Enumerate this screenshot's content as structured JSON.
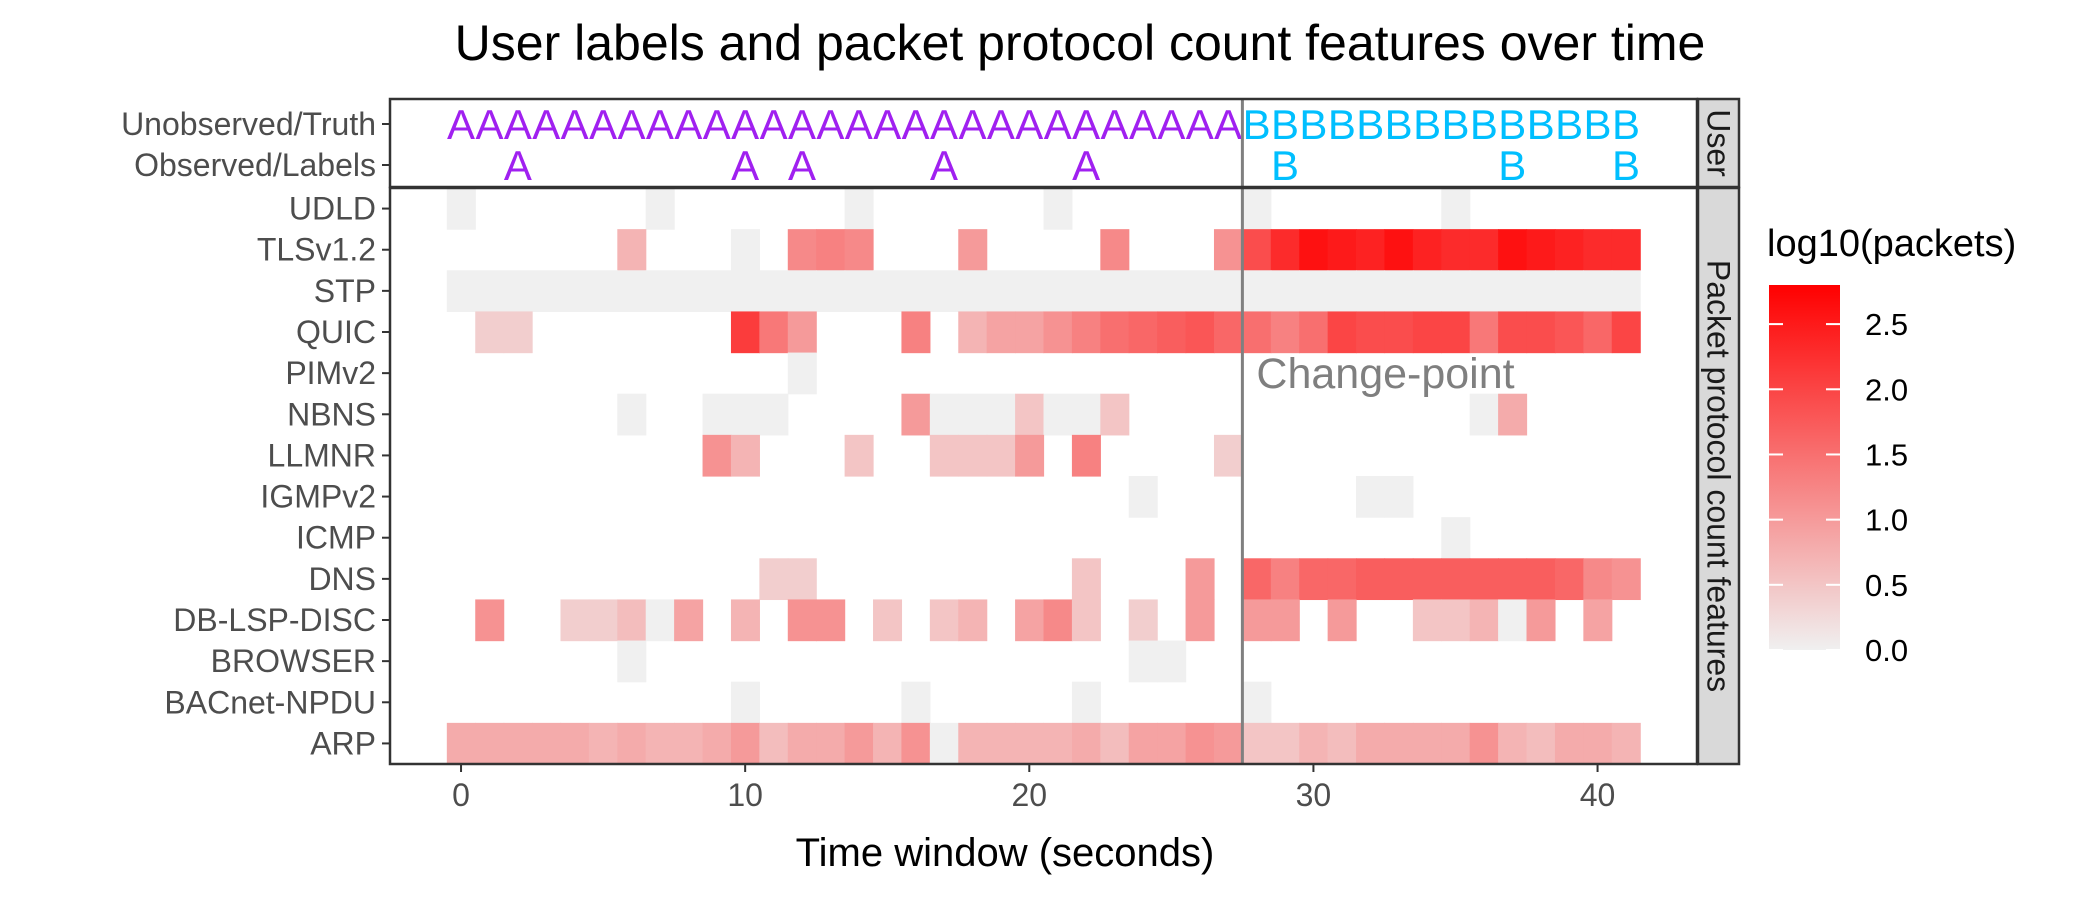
{
  "chart_data": {
    "type": "heatmap",
    "title": "User labels and packet protocol count features over time",
    "xlabel": "Time window (seconds)",
    "x_ticks": [
      0,
      10,
      20,
      30,
      40
    ],
    "xlim": [
      -2.5,
      43.5
    ],
    "facets": [
      "User",
      "Packet protocol count features"
    ],
    "user_rows": [
      "Unobserved/Truth",
      "Observed/Labels"
    ],
    "truth_labels": [
      "A",
      "A",
      "A",
      "A",
      "A",
      "A",
      "A",
      "A",
      "A",
      "A",
      "A",
      "A",
      "A",
      "A",
      "A",
      "A",
      "A",
      "A",
      "A",
      "A",
      "A",
      "A",
      "A",
      "A",
      "A",
      "A",
      "A",
      "A",
      "B",
      "B",
      "B",
      "B",
      "B",
      "B",
      "B",
      "B",
      "B",
      "B",
      "B",
      "B",
      "B",
      "B"
    ],
    "observed_labels": [
      {
        "x": 2,
        "label": "A"
      },
      {
        "x": 10,
        "label": "A"
      },
      {
        "x": 12,
        "label": "A"
      },
      {
        "x": 17,
        "label": "A"
      },
      {
        "x": 22,
        "label": "A"
      },
      {
        "x": 29,
        "label": "B"
      },
      {
        "x": 37,
        "label": "B"
      },
      {
        "x": 41,
        "label": "B"
      }
    ],
    "label_colors": {
      "A": "#a020f0",
      "B": "#00bfff"
    },
    "feature_rows": [
      "UDLD",
      "TLSv1.2",
      "STP",
      "QUIC",
      "PIMv2",
      "NBNS",
      "LLMNR",
      "IGMPv2",
      "ICMP",
      "DNS",
      "DB-LSP-DISC",
      "BROWSER",
      "BACnet-NPDU",
      "ARP"
    ],
    "cells": {
      "UDLD": [
        [
          0,
          0
        ],
        [
          7,
          0
        ],
        [
          14,
          0
        ],
        [
          21,
          0
        ],
        [
          28,
          0
        ],
        [
          35,
          0
        ]
      ],
      "TLSv1.2": [
        [
          6,
          0.7
        ],
        [
          10,
          0
        ],
        [
          12,
          1.2
        ],
        [
          13,
          1.3
        ],
        [
          14,
          1.2
        ],
        [
          18,
          1.0
        ],
        [
          23,
          1.2
        ],
        [
          27,
          1.1
        ],
        [
          28,
          1.9
        ],
        [
          29,
          2.3
        ],
        [
          30,
          2.6
        ],
        [
          31,
          2.5
        ],
        [
          32,
          2.4
        ],
        [
          33,
          2.6
        ],
        [
          34,
          2.4
        ],
        [
          35,
          2.3
        ],
        [
          36,
          2.3
        ],
        [
          37,
          2.6
        ],
        [
          38,
          2.5
        ],
        [
          39,
          2.4
        ],
        [
          40,
          2.3
        ],
        [
          41,
          2.3
        ]
      ],
      "STP": [
        [
          0,
          0
        ],
        [
          1,
          0
        ],
        [
          2,
          0
        ],
        [
          3,
          0
        ],
        [
          4,
          0
        ],
        [
          5,
          0
        ],
        [
          6,
          0
        ],
        [
          7,
          0
        ],
        [
          8,
          0
        ],
        [
          9,
          0
        ],
        [
          10,
          0
        ],
        [
          11,
          0
        ],
        [
          12,
          0
        ],
        [
          13,
          0
        ],
        [
          14,
          0
        ],
        [
          15,
          0
        ],
        [
          16,
          0
        ],
        [
          17,
          0
        ],
        [
          18,
          0
        ],
        [
          19,
          0
        ],
        [
          20,
          0
        ],
        [
          21,
          0
        ],
        [
          22,
          0
        ],
        [
          23,
          0
        ],
        [
          24,
          0
        ],
        [
          25,
          0
        ],
        [
          26,
          0
        ],
        [
          27,
          0
        ],
        [
          28,
          0
        ],
        [
          29,
          0
        ],
        [
          30,
          0
        ],
        [
          31,
          0
        ],
        [
          32,
          0
        ],
        [
          33,
          0
        ],
        [
          34,
          0
        ],
        [
          35,
          0
        ],
        [
          36,
          0
        ],
        [
          37,
          0
        ],
        [
          38,
          0
        ],
        [
          39,
          0
        ],
        [
          40,
          0
        ],
        [
          41,
          0
        ]
      ],
      "QUIC": [
        [
          1,
          0.4
        ],
        [
          2,
          0.4
        ],
        [
          10,
          2.1
        ],
        [
          11,
          1.4
        ],
        [
          12,
          1.0
        ],
        [
          16,
          1.3
        ],
        [
          18,
          0.7
        ],
        [
          19,
          0.9
        ],
        [
          20,
          0.9
        ],
        [
          21,
          1.1
        ],
        [
          22,
          1.3
        ],
        [
          23,
          1.5
        ],
        [
          24,
          1.6
        ],
        [
          25,
          1.7
        ],
        [
          26,
          1.8
        ],
        [
          27,
          1.6
        ],
        [
          28,
          1.5
        ],
        [
          29,
          1.3
        ],
        [
          30,
          1.5
        ],
        [
          31,
          2.0
        ],
        [
          32,
          1.9
        ],
        [
          33,
          1.9
        ],
        [
          34,
          2.0
        ],
        [
          35,
          2.0
        ],
        [
          36,
          1.4
        ],
        [
          37,
          1.9
        ],
        [
          38,
          1.9
        ],
        [
          39,
          1.8
        ],
        [
          40,
          1.6
        ],
        [
          41,
          2.0
        ]
      ],
      "PIMv2": [
        [
          12,
          0
        ]
      ],
      "NBNS": [
        [
          6,
          0
        ],
        [
          9,
          0
        ],
        [
          10,
          0
        ],
        [
          11,
          0
        ],
        [
          16,
          1.0
        ],
        [
          17,
          0
        ],
        [
          18,
          0
        ],
        [
          19,
          0
        ],
        [
          20,
          0.5
        ],
        [
          21,
          0
        ],
        [
          22,
          0
        ],
        [
          23,
          0.5
        ],
        [
          36,
          0
        ],
        [
          37,
          0.8
        ]
      ],
      "LLMNR": [
        [
          9,
          1.1
        ],
        [
          10,
          0.7
        ],
        [
          14,
          0.5
        ],
        [
          17,
          0.5
        ],
        [
          18,
          0.5
        ],
        [
          19,
          0.5
        ],
        [
          20,
          1.0
        ],
        [
          22,
          1.3
        ],
        [
          27,
          0.4
        ]
      ],
      "IGMPv2": [
        [
          24,
          0
        ],
        [
          32,
          0
        ],
        [
          33,
          0
        ]
      ],
      "ICMP": [
        [
          35,
          0
        ]
      ],
      "DNS": [
        [
          11,
          0.4
        ],
        [
          12,
          0.4
        ],
        [
          22,
          0.5
        ],
        [
          26,
          1.0
        ],
        [
          28,
          1.6
        ],
        [
          29,
          1.3
        ],
        [
          30,
          1.6
        ],
        [
          31,
          1.6
        ],
        [
          32,
          1.7
        ],
        [
          33,
          1.7
        ],
        [
          34,
          1.7
        ],
        [
          35,
          1.7
        ],
        [
          36,
          1.7
        ],
        [
          37,
          1.7
        ],
        [
          38,
          1.7
        ],
        [
          39,
          1.6
        ],
        [
          40,
          1.2
        ],
        [
          41,
          1.1
        ]
      ],
      "DB-LSP-DISC": [
        [
          1,
          1.1
        ],
        [
          4,
          0.4
        ],
        [
          5,
          0.4
        ],
        [
          6,
          0.6
        ],
        [
          7,
          0
        ],
        [
          8,
          0.9
        ],
        [
          10,
          0.7
        ],
        [
          12,
          1.1
        ],
        [
          13,
          1.1
        ],
        [
          15,
          0.5
        ],
        [
          17,
          0.5
        ],
        [
          18,
          0.7
        ],
        [
          20,
          0.9
        ],
        [
          21,
          1.2
        ],
        [
          22,
          0.5
        ],
        [
          24,
          0.4
        ],
        [
          26,
          1.0
        ],
        [
          28,
          1.0
        ],
        [
          29,
          1.0
        ],
        [
          31,
          1.0
        ],
        [
          34,
          0.5
        ],
        [
          35,
          0.5
        ],
        [
          36,
          0.7
        ],
        [
          37,
          0
        ],
        [
          38,
          1.0
        ],
        [
          40,
          0.9
        ]
      ],
      "BROWSER": [
        [
          6,
          0
        ],
        [
          24,
          0
        ],
        [
          25,
          0
        ]
      ],
      "BACnet-NPDU": [
        [
          10,
          0
        ],
        [
          16,
          0
        ],
        [
          22,
          0
        ],
        [
          28,
          0
        ]
      ],
      "ARP": [
        [
          0,
          0.8
        ],
        [
          1,
          0.8
        ],
        [
          2,
          0.8
        ],
        [
          3,
          0.8
        ],
        [
          4,
          0.8
        ],
        [
          5,
          0.7
        ],
        [
          6,
          0.8
        ],
        [
          7,
          0.7
        ],
        [
          8,
          0.7
        ],
        [
          9,
          0.8
        ],
        [
          10,
          1.0
        ],
        [
          11,
          0.6
        ],
        [
          12,
          0.8
        ],
        [
          13,
          0.8
        ],
        [
          14,
          1.0
        ],
        [
          15,
          0.7
        ],
        [
          16,
          1.1
        ],
        [
          17,
          0
        ],
        [
          18,
          0.7
        ],
        [
          19,
          0.7
        ],
        [
          20,
          0.7
        ],
        [
          21,
          0.7
        ],
        [
          22,
          0.8
        ],
        [
          23,
          0.6
        ],
        [
          24,
          0.9
        ],
        [
          25,
          0.9
        ],
        [
          26,
          1.1
        ],
        [
          27,
          1.0
        ],
        [
          28,
          0.5
        ],
        [
          29,
          0.5
        ],
        [
          30,
          0.7
        ],
        [
          31,
          0.6
        ],
        [
          32,
          0.8
        ],
        [
          33,
          0.8
        ],
        [
          34,
          0.8
        ],
        [
          35,
          0.8
        ],
        [
          36,
          1.1
        ],
        [
          37,
          0.7
        ],
        [
          38,
          0.6
        ],
        [
          39,
          0.8
        ],
        [
          40,
          0.8
        ],
        [
          41,
          0.7
        ]
      ]
    },
    "change_point": {
      "x": 27.5,
      "label": "Change-point"
    },
    "legend": {
      "title": "log10(packets)",
      "breaks": [
        0.0,
        0.5,
        1.0,
        1.5,
        2.0,
        2.5
      ],
      "labels": [
        "0.0",
        "0.5",
        "1.0",
        "1.5",
        "2.0",
        "2.5"
      ],
      "range": [
        0,
        2.8
      ],
      "low_color": "#f0f0f0",
      "high_color": "#ff0000",
      "position": "right"
    }
  }
}
